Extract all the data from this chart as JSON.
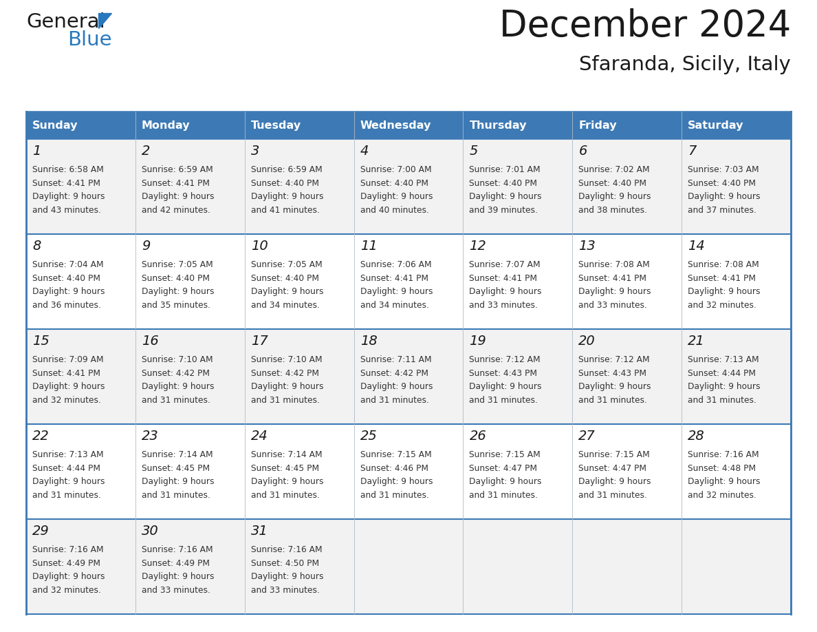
{
  "title": "December 2024",
  "subtitle": "Sfaranda, Sicily, Italy",
  "header_color": "#3d7ab5",
  "header_text_color": "#ffffff",
  "border_color": "#3d7ab5",
  "row_colors": [
    "#f2f2f2",
    "#ffffff",
    "#f2f2f2",
    "#ffffff",
    "#f2f2f2"
  ],
  "day_names": [
    "Sunday",
    "Monday",
    "Tuesday",
    "Wednesday",
    "Thursday",
    "Friday",
    "Saturday"
  ],
  "days": [
    {
      "day": 1,
      "col": 0,
      "row": 0,
      "sunrise": "6:58 AM",
      "sunset": "4:41 PM",
      "daylight_mins": "43"
    },
    {
      "day": 2,
      "col": 1,
      "row": 0,
      "sunrise": "6:59 AM",
      "sunset": "4:41 PM",
      "daylight_mins": "42"
    },
    {
      "day": 3,
      "col": 2,
      "row": 0,
      "sunrise": "6:59 AM",
      "sunset": "4:40 PM",
      "daylight_mins": "41"
    },
    {
      "day": 4,
      "col": 3,
      "row": 0,
      "sunrise": "7:00 AM",
      "sunset": "4:40 PM",
      "daylight_mins": "40"
    },
    {
      "day": 5,
      "col": 4,
      "row": 0,
      "sunrise": "7:01 AM",
      "sunset": "4:40 PM",
      "daylight_mins": "39"
    },
    {
      "day": 6,
      "col": 5,
      "row": 0,
      "sunrise": "7:02 AM",
      "sunset": "4:40 PM",
      "daylight_mins": "38"
    },
    {
      "day": 7,
      "col": 6,
      "row": 0,
      "sunrise": "7:03 AM",
      "sunset": "4:40 PM",
      "daylight_mins": "37"
    },
    {
      "day": 8,
      "col": 0,
      "row": 1,
      "sunrise": "7:04 AM",
      "sunset": "4:40 PM",
      "daylight_mins": "36"
    },
    {
      "day": 9,
      "col": 1,
      "row": 1,
      "sunrise": "7:05 AM",
      "sunset": "4:40 PM",
      "daylight_mins": "35"
    },
    {
      "day": 10,
      "col": 2,
      "row": 1,
      "sunrise": "7:05 AM",
      "sunset": "4:40 PM",
      "daylight_mins": "34"
    },
    {
      "day": 11,
      "col": 3,
      "row": 1,
      "sunrise": "7:06 AM",
      "sunset": "4:41 PM",
      "daylight_mins": "34"
    },
    {
      "day": 12,
      "col": 4,
      "row": 1,
      "sunrise": "7:07 AM",
      "sunset": "4:41 PM",
      "daylight_mins": "33"
    },
    {
      "day": 13,
      "col": 5,
      "row": 1,
      "sunrise": "7:08 AM",
      "sunset": "4:41 PM",
      "daylight_mins": "33"
    },
    {
      "day": 14,
      "col": 6,
      "row": 1,
      "sunrise": "7:08 AM",
      "sunset": "4:41 PM",
      "daylight_mins": "32"
    },
    {
      "day": 15,
      "col": 0,
      "row": 2,
      "sunrise": "7:09 AM",
      "sunset": "4:41 PM",
      "daylight_mins": "32"
    },
    {
      "day": 16,
      "col": 1,
      "row": 2,
      "sunrise": "7:10 AM",
      "sunset": "4:42 PM",
      "daylight_mins": "31"
    },
    {
      "day": 17,
      "col": 2,
      "row": 2,
      "sunrise": "7:10 AM",
      "sunset": "4:42 PM",
      "daylight_mins": "31"
    },
    {
      "day": 18,
      "col": 3,
      "row": 2,
      "sunrise": "7:11 AM",
      "sunset": "4:42 PM",
      "daylight_mins": "31"
    },
    {
      "day": 19,
      "col": 4,
      "row": 2,
      "sunrise": "7:12 AM",
      "sunset": "4:43 PM",
      "daylight_mins": "31"
    },
    {
      "day": 20,
      "col": 5,
      "row": 2,
      "sunrise": "7:12 AM",
      "sunset": "4:43 PM",
      "daylight_mins": "31"
    },
    {
      "day": 21,
      "col": 6,
      "row": 2,
      "sunrise": "7:13 AM",
      "sunset": "4:44 PM",
      "daylight_mins": "31"
    },
    {
      "day": 22,
      "col": 0,
      "row": 3,
      "sunrise": "7:13 AM",
      "sunset": "4:44 PM",
      "daylight_mins": "31"
    },
    {
      "day": 23,
      "col": 1,
      "row": 3,
      "sunrise": "7:14 AM",
      "sunset": "4:45 PM",
      "daylight_mins": "31"
    },
    {
      "day": 24,
      "col": 2,
      "row": 3,
      "sunrise": "7:14 AM",
      "sunset": "4:45 PM",
      "daylight_mins": "31"
    },
    {
      "day": 25,
      "col": 3,
      "row": 3,
      "sunrise": "7:15 AM",
      "sunset": "4:46 PM",
      "daylight_mins": "31"
    },
    {
      "day": 26,
      "col": 4,
      "row": 3,
      "sunrise": "7:15 AM",
      "sunset": "4:47 PM",
      "daylight_mins": "31"
    },
    {
      "day": 27,
      "col": 5,
      "row": 3,
      "sunrise": "7:15 AM",
      "sunset": "4:47 PM",
      "daylight_mins": "31"
    },
    {
      "day": 28,
      "col": 6,
      "row": 3,
      "sunrise": "7:16 AM",
      "sunset": "4:48 PM",
      "daylight_mins": "32"
    },
    {
      "day": 29,
      "col": 0,
      "row": 4,
      "sunrise": "7:16 AM",
      "sunset": "4:49 PM",
      "daylight_mins": "32"
    },
    {
      "day": 30,
      "col": 1,
      "row": 4,
      "sunrise": "7:16 AM",
      "sunset": "4:49 PM",
      "daylight_mins": "33"
    },
    {
      "day": 31,
      "col": 2,
      "row": 4,
      "sunrise": "7:16 AM",
      "sunset": "4:50 PM",
      "daylight_mins": "33"
    }
  ],
  "logo_color_general": "#1a1a1a",
  "logo_color_blue": "#2878be",
  "fig_width": 11.88,
  "fig_height": 9.18,
  "dpi": 100
}
